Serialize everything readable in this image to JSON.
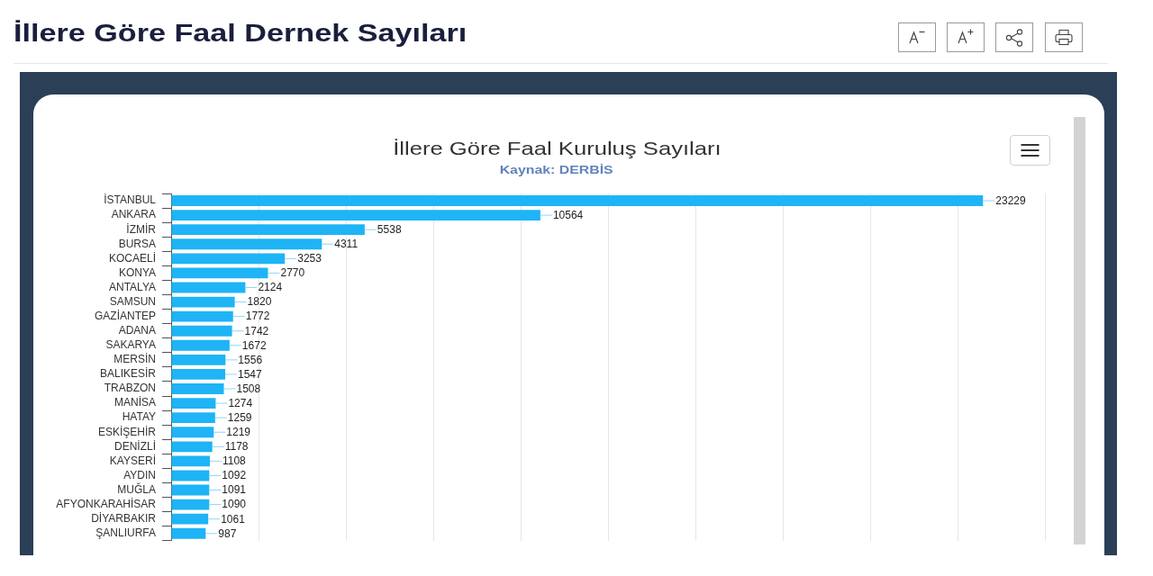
{
  "chart_data": {
    "type": "bar",
    "orientation": "horizontal",
    "title": "İllere Göre Faal Dernek Sayıları",
    "subtitle": "İllere Göre Faal Kuruluş Sayıları",
    "annotations": [
      "Kaynak: DERBİS"
    ],
    "categories": [
      "İSTANBUL",
      "ANKARA",
      "İZMİR",
      "BURSA",
      "KOCAELİ",
      "KONYA",
      "ANTALYA",
      "SAMSUN",
      "GAZİANTEP",
      "ADANA",
      "SAKARYA",
      "MERSİN",
      "BALIKESİR",
      "TRABZON",
      "MANİSA",
      "HATAY",
      "ESKİŞEHİR",
      "DENİZLİ",
      "KAYSERİ",
      "AYDIN",
      "MUĞLA",
      "AFYONKARAHİSAR",
      "DİYARBAKIR",
      "ŞANLIURFA"
    ],
    "values": [
      23229,
      10564,
      5538,
      4311,
      3253,
      2770,
      2124,
      1820,
      1772,
      1742,
      1672,
      1556,
      1547,
      1508,
      1274,
      1259,
      1219,
      1178,
      1108,
      1092,
      1091,
      1090,
      1061,
      987
    ],
    "color": "#1eb4f6",
    "xlim": [
      0,
      25000
    ],
    "xticks": [
      {
        "value": 0,
        "label": null
      },
      {
        "value": 2500,
        "label": null
      },
      {
        "value": 5000,
        "label": null
      },
      {
        "value": 7500,
        "label": null
      },
      {
        "value": 10000,
        "label": null
      },
      {
        "value": 12500,
        "label": null
      },
      {
        "value": 15000,
        "label": null
      },
      {
        "value": 17500,
        "label": null
      },
      {
        "value": 20000,
        "label": null
      },
      {
        "value": 22500,
        "label": null
      },
      {
        "value": 25000,
        "label": null
      }
    ],
    "tick_labels": "y",
    "grid": "x",
    "data_labels": true,
    "legend": false
  }
}
